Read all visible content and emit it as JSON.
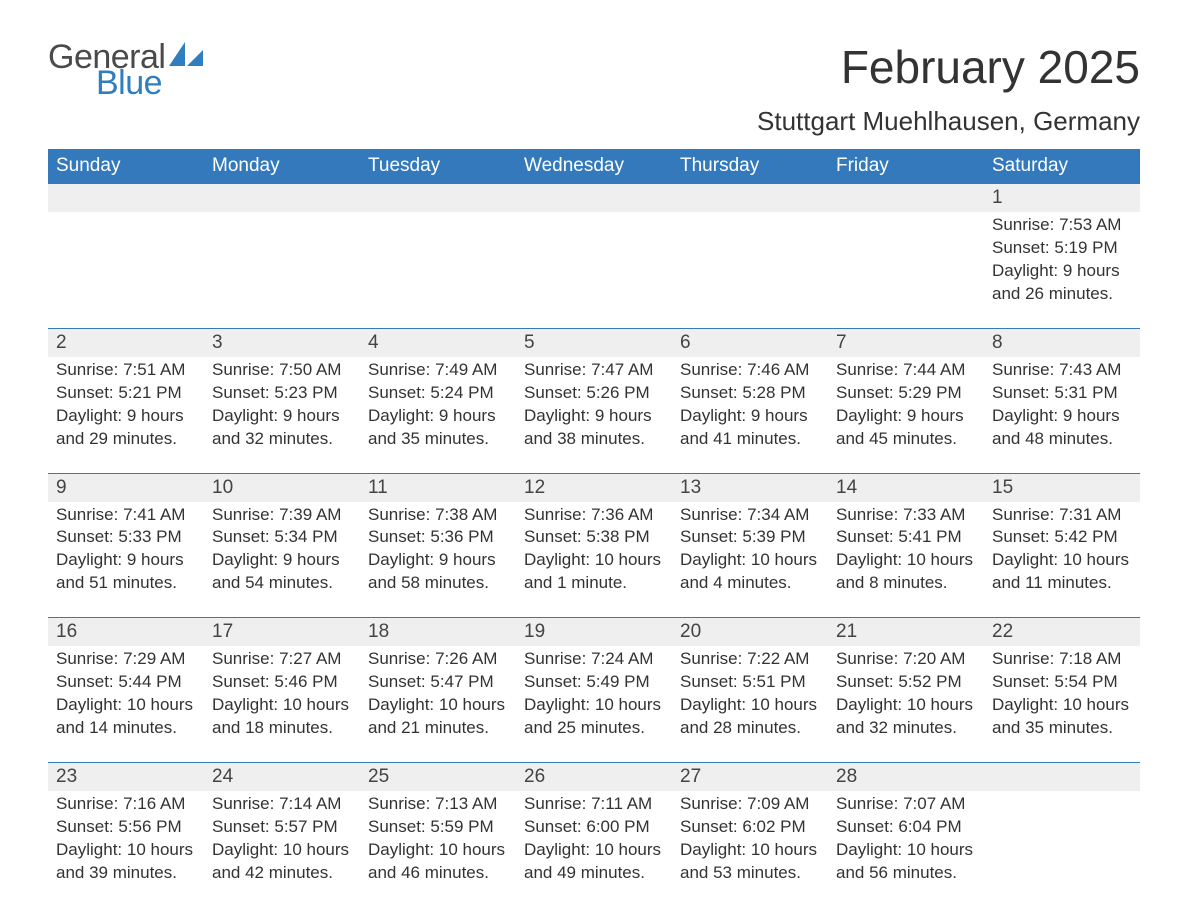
{
  "logo": {
    "general": "General",
    "blue": "Blue",
    "general_color": "#4a4a4a",
    "blue_color": "#2f7ec0"
  },
  "title": "February 2025",
  "location": "Stuttgart Muehlhausen, Germany",
  "header_bg": "#3379bc",
  "header_text_color": "#ffffff",
  "row_border_color": "#3379bc",
  "day_num_bg": "#efefef",
  "text_color": "#333333",
  "columns": [
    "Sunday",
    "Monday",
    "Tuesday",
    "Wednesday",
    "Thursday",
    "Friday",
    "Saturday"
  ],
  "weeks": [
    [
      null,
      null,
      null,
      null,
      null,
      null,
      {
        "day": "1",
        "lines": [
          "Sunrise: 7:53 AM",
          "Sunset: 5:19 PM",
          "Daylight: 9 hours",
          "and 26 minutes."
        ]
      }
    ],
    [
      {
        "day": "2",
        "lines": [
          "Sunrise: 7:51 AM",
          "Sunset: 5:21 PM",
          "Daylight: 9 hours",
          "and 29 minutes."
        ]
      },
      {
        "day": "3",
        "lines": [
          "Sunrise: 7:50 AM",
          "Sunset: 5:23 PM",
          "Daylight: 9 hours",
          "and 32 minutes."
        ]
      },
      {
        "day": "4",
        "lines": [
          "Sunrise: 7:49 AM",
          "Sunset: 5:24 PM",
          "Daylight: 9 hours",
          "and 35 minutes."
        ]
      },
      {
        "day": "5",
        "lines": [
          "Sunrise: 7:47 AM",
          "Sunset: 5:26 PM",
          "Daylight: 9 hours",
          "and 38 minutes."
        ]
      },
      {
        "day": "6",
        "lines": [
          "Sunrise: 7:46 AM",
          "Sunset: 5:28 PM",
          "Daylight: 9 hours",
          "and 41 minutes."
        ]
      },
      {
        "day": "7",
        "lines": [
          "Sunrise: 7:44 AM",
          "Sunset: 5:29 PM",
          "Daylight: 9 hours",
          "and 45 minutes."
        ]
      },
      {
        "day": "8",
        "lines": [
          "Sunrise: 7:43 AM",
          "Sunset: 5:31 PM",
          "Daylight: 9 hours",
          "and 48 minutes."
        ]
      }
    ],
    [
      {
        "day": "9",
        "lines": [
          "Sunrise: 7:41 AM",
          "Sunset: 5:33 PM",
          "Daylight: 9 hours",
          "and 51 minutes."
        ]
      },
      {
        "day": "10",
        "lines": [
          "Sunrise: 7:39 AM",
          "Sunset: 5:34 PM",
          "Daylight: 9 hours",
          "and 54 minutes."
        ]
      },
      {
        "day": "11",
        "lines": [
          "Sunrise: 7:38 AM",
          "Sunset: 5:36 PM",
          "Daylight: 9 hours",
          "and 58 minutes."
        ]
      },
      {
        "day": "12",
        "lines": [
          "Sunrise: 7:36 AM",
          "Sunset: 5:38 PM",
          "Daylight: 10 hours",
          "and 1 minute."
        ]
      },
      {
        "day": "13",
        "lines": [
          "Sunrise: 7:34 AM",
          "Sunset: 5:39 PM",
          "Daylight: 10 hours",
          "and 4 minutes."
        ]
      },
      {
        "day": "14",
        "lines": [
          "Sunrise: 7:33 AM",
          "Sunset: 5:41 PM",
          "Daylight: 10 hours",
          "and 8 minutes."
        ]
      },
      {
        "day": "15",
        "lines": [
          "Sunrise: 7:31 AM",
          "Sunset: 5:42 PM",
          "Daylight: 10 hours",
          "and 11 minutes."
        ]
      }
    ],
    [
      {
        "day": "16",
        "lines": [
          "Sunrise: 7:29 AM",
          "Sunset: 5:44 PM",
          "Daylight: 10 hours",
          "and 14 minutes."
        ]
      },
      {
        "day": "17",
        "lines": [
          "Sunrise: 7:27 AM",
          "Sunset: 5:46 PM",
          "Daylight: 10 hours",
          "and 18 minutes."
        ]
      },
      {
        "day": "18",
        "lines": [
          "Sunrise: 7:26 AM",
          "Sunset: 5:47 PM",
          "Daylight: 10 hours",
          "and 21 minutes."
        ]
      },
      {
        "day": "19",
        "lines": [
          "Sunrise: 7:24 AM",
          "Sunset: 5:49 PM",
          "Daylight: 10 hours",
          "and 25 minutes."
        ]
      },
      {
        "day": "20",
        "lines": [
          "Sunrise: 7:22 AM",
          "Sunset: 5:51 PM",
          "Daylight: 10 hours",
          "and 28 minutes."
        ]
      },
      {
        "day": "21",
        "lines": [
          "Sunrise: 7:20 AM",
          "Sunset: 5:52 PM",
          "Daylight: 10 hours",
          "and 32 minutes."
        ]
      },
      {
        "day": "22",
        "lines": [
          "Sunrise: 7:18 AM",
          "Sunset: 5:54 PM",
          "Daylight: 10 hours",
          "and 35 minutes."
        ]
      }
    ],
    [
      {
        "day": "23",
        "lines": [
          "Sunrise: 7:16 AM",
          "Sunset: 5:56 PM",
          "Daylight: 10 hours",
          "and 39 minutes."
        ]
      },
      {
        "day": "24",
        "lines": [
          "Sunrise: 7:14 AM",
          "Sunset: 5:57 PM",
          "Daylight: 10 hours",
          "and 42 minutes."
        ]
      },
      {
        "day": "25",
        "lines": [
          "Sunrise: 7:13 AM",
          "Sunset: 5:59 PM",
          "Daylight: 10 hours",
          "and 46 minutes."
        ]
      },
      {
        "day": "26",
        "lines": [
          "Sunrise: 7:11 AM",
          "Sunset: 6:00 PM",
          "Daylight: 10 hours",
          "and 49 minutes."
        ]
      },
      {
        "day": "27",
        "lines": [
          "Sunrise: 7:09 AM",
          "Sunset: 6:02 PM",
          "Daylight: 10 hours",
          "and 53 minutes."
        ]
      },
      {
        "day": "28",
        "lines": [
          "Sunrise: 7:07 AM",
          "Sunset: 6:04 PM",
          "Daylight: 10 hours",
          "and 56 minutes."
        ]
      },
      null
    ]
  ]
}
